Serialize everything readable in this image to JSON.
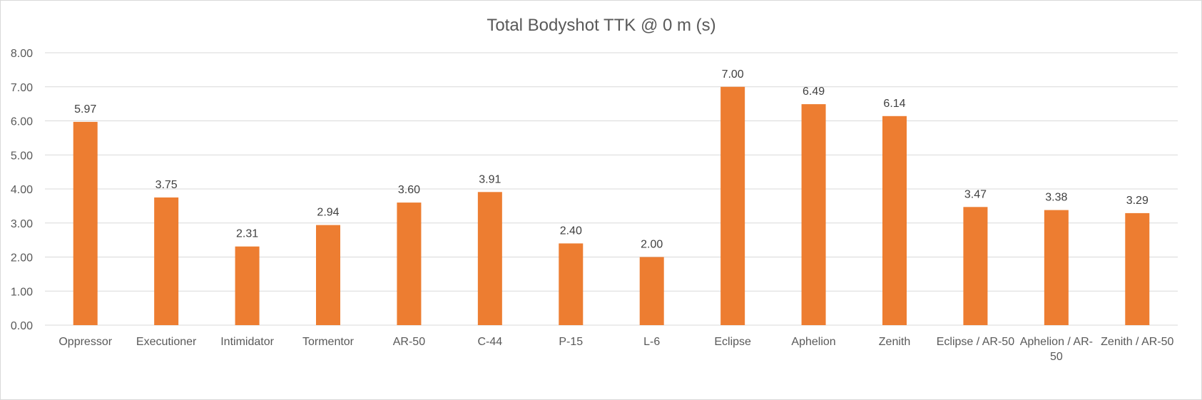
{
  "chart_data": {
    "type": "bar",
    "title": "Total Bodyshot TTK @ 0 m (s)",
    "xlabel": "",
    "ylabel": "",
    "ylim": [
      0,
      8
    ],
    "yticks": [
      "0.00",
      "1.00",
      "2.00",
      "3.00",
      "4.00",
      "5.00",
      "6.00",
      "7.00",
      "8.00"
    ],
    "grid": true,
    "legend": "none",
    "bar_color": "#ED7D31",
    "categories": [
      "Oppressor",
      "Executioner",
      "Intimidator",
      "Tormentor",
      "AR-50",
      "C-44",
      "P-15",
      "L-6",
      "Eclipse",
      "Aphelion",
      "Zenith",
      "Eclipse / AR-50",
      "Aphelion / AR-50",
      "Zenith / AR-50"
    ],
    "values": [
      5.97,
      3.75,
      2.31,
      2.94,
      3.6,
      3.91,
      2.4,
      2.0,
      7.0,
      6.49,
      6.14,
      3.47,
      3.38,
      3.29
    ],
    "data_labels": [
      "5.97",
      "3.75",
      "2.31",
      "2.94",
      "3.60",
      "3.91",
      "2.40",
      "2.00",
      "7.00",
      "6.49",
      "6.14",
      "3.47",
      "3.38",
      "3.29"
    ]
  }
}
